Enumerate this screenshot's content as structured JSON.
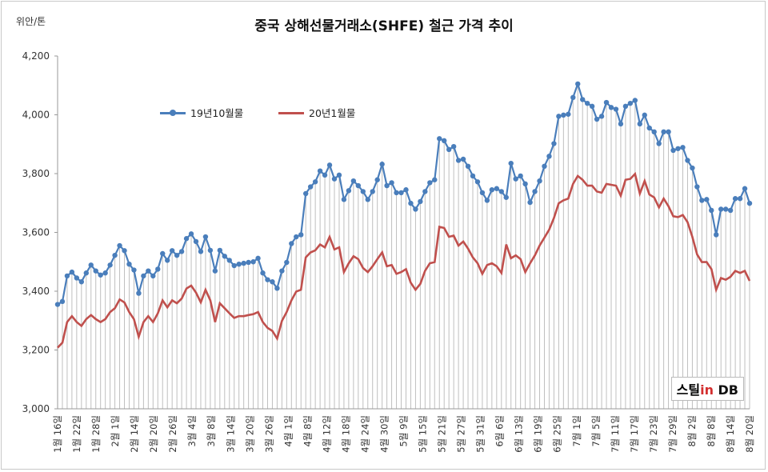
{
  "header": {
    "title": "중국 상해선물거래소(SHFE) 철근 가격 추이",
    "unit": "위안/톤"
  },
  "logo": {
    "part1": "스틸",
    "part2": "in",
    "part3": " DB"
  },
  "colors": {
    "series1": "#4a7ebb",
    "series2": "#c0504d",
    "grid": "#bfbfbf"
  },
  "chart_data": {
    "type": "line",
    "title": "중국 상해선물거래소(SHFE) 철근 가격 추이",
    "ylabel": "위안/톤",
    "ylim": [
      3000,
      4200
    ],
    "yticks": [
      "3,000",
      "3,200",
      "3,400",
      "3,600",
      "3,800",
      "4,000",
      "4,200"
    ],
    "x_tick_labels": [
      "1월 16일",
      "1월 22일",
      "1월 28일",
      "2월 1일",
      "2월 14일",
      "2월 20일",
      "2월 26일",
      "3월 4일",
      "3월 8일",
      "3월 14일",
      "3월 20일",
      "3월 26일",
      "4월 1일",
      "4월 8일",
      "4월 12일",
      "4월 18일",
      "4월 24일",
      "4월 30일",
      "5월 9일",
      "5월 15일",
      "5월 21일",
      "5월 27일",
      "5월 31일",
      "6월 6일",
      "6월 13일",
      "6월 19일",
      "6월 25일",
      "7월 1일",
      "7월 5일",
      "7월 11일",
      "7월 17일",
      "7월 23일",
      "7월 29일",
      "8월 2일",
      "8월 8일",
      "8월 14일",
      "8월 20일"
    ],
    "legend": "top-left",
    "series": [
      {
        "name": "19년10월물",
        "values": [
          3355,
          3365,
          3452,
          3465,
          3445,
          3432,
          3462,
          3489,
          3469,
          3455,
          3462,
          3489,
          3522,
          3555,
          3538,
          3492,
          3472,
          3393,
          3452,
          3469,
          3452,
          3475,
          3528,
          3505,
          3538,
          3522,
          3535,
          3579,
          3595,
          3569,
          3535,
          3585,
          3539,
          3469,
          3539,
          3519,
          3505,
          3487,
          3492,
          3495,
          3498,
          3500,
          3512,
          3462,
          3439,
          3432,
          3410,
          3469,
          3498,
          3562,
          3585,
          3592,
          3732,
          3755,
          3772,
          3809,
          3795,
          3829,
          3782,
          3795,
          3712,
          3742,
          3775,
          3759,
          3739,
          3712,
          3739,
          3779,
          3832,
          3759,
          3769,
          3735,
          3735,
          3745,
          3699,
          3679,
          3705,
          3739,
          3769,
          3779,
          3919,
          3912,
          3882,
          3892,
          3845,
          3849,
          3825,
          3792,
          3772,
          3735,
          3709,
          3745,
          3749,
          3739,
          3719,
          3835,
          3782,
          3792,
          3765,
          3702,
          3739,
          3775,
          3825,
          3859,
          3902,
          3995,
          3999,
          4002,
          4059,
          4105,
          4052,
          4039,
          4029,
          3985,
          3995,
          4042,
          4025,
          4019,
          3969,
          4029,
          4039,
          4049,
          3969,
          3999,
          3955,
          3942,
          3902,
          3942,
          3942,
          3879,
          3885,
          3889,
          3845,
          3819,
          3755,
          3709,
          3712,
          3675,
          3592,
          3679,
          3679,
          3675,
          3715,
          3715,
          3749,
          3699
        ]
      },
      {
        "name": "20년1월물",
        "values": [
          3208,
          3225,
          3295,
          3315,
          3295,
          3282,
          3305,
          3319,
          3305,
          3295,
          3305,
          3329,
          3342,
          3372,
          3362,
          3329,
          3305,
          3245,
          3295,
          3315,
          3295,
          3325,
          3369,
          3345,
          3369,
          3359,
          3375,
          3409,
          3419,
          3395,
          3362,
          3405,
          3369,
          3295,
          3359,
          3342,
          3325,
          3309,
          3315,
          3315,
          3319,
          3322,
          3329,
          3295,
          3275,
          3265,
          3239,
          3299,
          3329,
          3369,
          3399,
          3405,
          3515,
          3532,
          3539,
          3559,
          3549,
          3585,
          3542,
          3549,
          3465,
          3495,
          3519,
          3509,
          3479,
          3465,
          3485,
          3509,
          3532,
          3485,
          3489,
          3459,
          3465,
          3475,
          3429,
          3405,
          3425,
          3469,
          3495,
          3499,
          3619,
          3615,
          3585,
          3589,
          3555,
          3569,
          3545,
          3515,
          3495,
          3459,
          3489,
          3495,
          3485,
          3462,
          3559,
          3512,
          3522,
          3509,
          3465,
          3495,
          3522,
          3555,
          3582,
          3609,
          3649,
          3699,
          3709,
          3715,
          3765,
          3792,
          3779,
          3759,
          3759,
          3739,
          3735,
          3765,
          3762,
          3759,
          3725,
          3779,
          3782,
          3799,
          3732,
          3775,
          3729,
          3719,
          3685,
          3715,
          3689,
          3655,
          3652,
          3659,
          3635,
          3585,
          3525,
          3499,
          3499,
          3475,
          3405,
          3445,
          3439,
          3449,
          3469,
          3462,
          3469,
          3435
        ]
      }
    ]
  }
}
